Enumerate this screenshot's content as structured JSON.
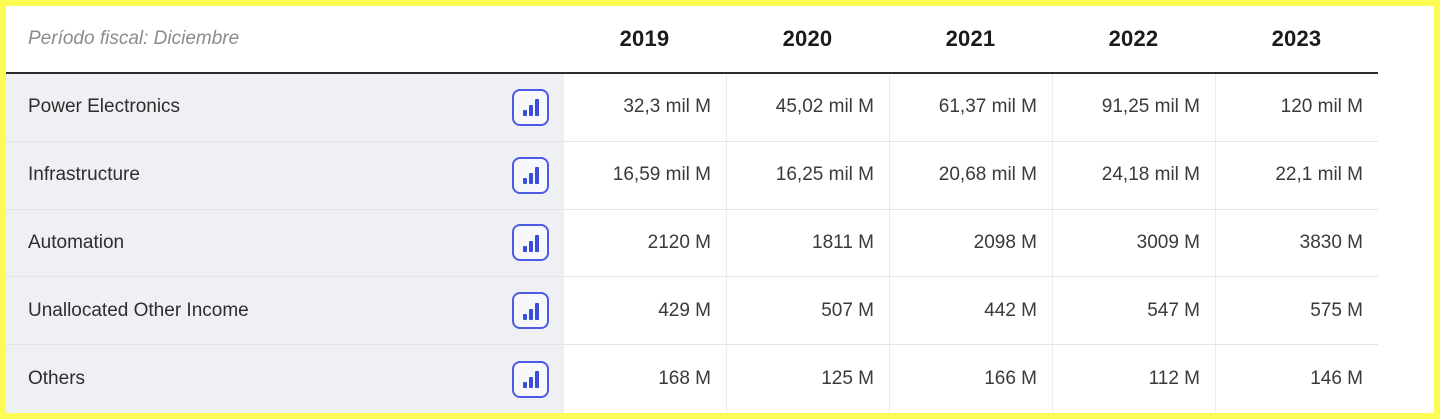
{
  "table": {
    "period_label": "Período fiscal: Diciembre",
    "years": [
      "2019",
      "2020",
      "2021",
      "2022",
      "2023"
    ],
    "rows": [
      {
        "label": "Power Electronics",
        "values": [
          "32,3 mil M",
          "45,02 mil M",
          "61,37 mil M",
          "91,25 mil M",
          "120 mil M"
        ]
      },
      {
        "label": "Infrastructure",
        "values": [
          "16,59 mil M",
          "16,25 mil M",
          "20,68 mil M",
          "24,18 mil M",
          "22,1 mil M"
        ]
      },
      {
        "label": "Automation",
        "values": [
          "2120 M",
          "1811 M",
          "2098 M",
          "3009 M",
          "3830 M"
        ]
      },
      {
        "label": "Unallocated Other Income",
        "values": [
          "429 M",
          "507 M",
          "442 M",
          "547 M",
          "575 M"
        ]
      },
      {
        "label": "Others",
        "values": [
          "168 M",
          "125 M",
          "166 M",
          "112 M",
          "146 M"
        ]
      }
    ],
    "row_button_icon": "bar-chart-icon"
  },
  "chart_data": {
    "type": "table",
    "title": "Período fiscal: Diciembre",
    "categories": [
      "2019",
      "2020",
      "2021",
      "2022",
      "2023"
    ],
    "series": [
      {
        "name": "Power Electronics",
        "values": [
          "32,3 mil M",
          "45,02 mil M",
          "61,37 mil M",
          "91,25 mil M",
          "120 mil M"
        ]
      },
      {
        "name": "Infrastructure",
        "values": [
          "16,59 mil M",
          "16,25 mil M",
          "20,68 mil M",
          "24,18 mil M",
          "22,1 mil M"
        ]
      },
      {
        "name": "Automation",
        "values": [
          "2120 M",
          "1811 M",
          "2098 M",
          "3009 M",
          "3830 M"
        ]
      },
      {
        "name": "Unallocated Other Income",
        "values": [
          "429 M",
          "507 M",
          "442 M",
          "547 M",
          "575 M"
        ]
      },
      {
        "name": "Others",
        "values": [
          "168 M",
          "125 M",
          "166 M",
          "112 M",
          "146 M"
        ]
      }
    ]
  },
  "colors": {
    "outer_border": "#fcfc55",
    "header_rule": "#2d2d2d",
    "label_column_bg": "#eef0f4",
    "row_separator": "#e3e5e9",
    "button_border": "#4c5ce2",
    "button_bars": "#3a4dd9"
  }
}
